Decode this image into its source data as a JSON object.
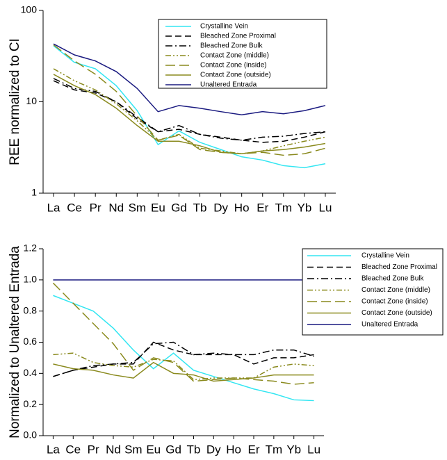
{
  "chart_data": [
    {
      "type": "line",
      "y_label": "REE normalized to CI",
      "yscale": "log",
      "ylim": [
        1,
        100
      ],
      "yticks": [
        1,
        10,
        100
      ],
      "legend": "upper right",
      "categories": [
        "La",
        "Ce",
        "Pr",
        "Nd",
        "Sm",
        "Eu",
        "Gd",
        "Tb",
        "Dy",
        "Ho",
        "Er",
        "Tm",
        "Yb",
        "Lu"
      ],
      "series": [
        {
          "name": "Crystalline Vein",
          "color": "#33e6f2",
          "dash": "solid",
          "values": [
            41,
            27,
            23,
            15,
            8,
            3.4,
            4.8,
            3.6,
            3.0,
            2.5,
            2.3,
            2.0,
            1.9,
            2.1
          ]
        },
        {
          "name": "Bleached Zone Proximal",
          "color": "#000000",
          "dash": "dash",
          "values": [
            17,
            13.5,
            12.5,
            10,
            6.5,
            4.7,
            5.0,
            4.4,
            4.1,
            3.8,
            3.6,
            3.7,
            4.1,
            4.7
          ]
        },
        {
          "name": "Bleached Zone Bulk",
          "color": "#000000",
          "dash": "dashdot",
          "values": [
            18,
            14,
            13,
            10,
            6.8,
            4.7,
            5.5,
            4.4,
            4.0,
            3.8,
            4.1,
            4.2,
            4.5,
            4.7
          ]
        },
        {
          "name": "Contact Zone (middle)",
          "color": "#8a8a1e",
          "dash": "dashdotdot",
          "values": [
            23,
            17,
            13.5,
            9.5,
            6.2,
            3.8,
            4.4,
            3.1,
            2.9,
            2.7,
            2.9,
            3.3,
            3.7,
            4.1
          ]
        },
        {
          "name": "Contact Zone (inside)",
          "color": "#8a8a1e",
          "dash": "longdash",
          "values": [
            42,
            28,
            20,
            13,
            7,
            3.8,
            4.3,
            3.0,
            2.8,
            2.7,
            2.8,
            2.6,
            2.7,
            3.1
          ]
        },
        {
          "name": "Contact Zone (outside)",
          "color": "#8a8a1e",
          "dash": "solid",
          "values": [
            20,
            15,
            12,
            8.5,
            5.5,
            3.7,
            3.7,
            3.3,
            2.8,
            2.7,
            2.9,
            3.0,
            3.2,
            3.5
          ]
        },
        {
          "name": "Unaltered Entrada",
          "color": "#1a1a80",
          "dash": "solid",
          "values": [
            43,
            32.6,
            28,
            21.4,
            14,
            7.8,
            9.1,
            8.5,
            7.8,
            7.2,
            7.8,
            7.4,
            8.0,
            9.1
          ]
        }
      ]
    },
    {
      "type": "line",
      "y_label": "Normalized to Unaltered Entrada",
      "yscale": "linear",
      "ylim": [
        0,
        1.2
      ],
      "yticks": [
        {
          "value": 0,
          "label": "0.0"
        },
        0.2,
        0.4,
        0.6,
        0.8,
        {
          "value": 1,
          "label": "1.0"
        },
        1.2
      ],
      "legend": "upper right",
      "categories": [
        "La",
        "Ce",
        "Pr",
        "Nd",
        "Sm",
        "Eu",
        "Gd",
        "Tb",
        "Dy",
        "Ho",
        "Er",
        "Tm",
        "Yb",
        "Lu"
      ],
      "series": [
        {
          "name": "Crystalline Vein",
          "color": "#33e6f2",
          "dash": "solid",
          "values": [
            0.9,
            0.85,
            0.8,
            0.69,
            0.55,
            0.43,
            0.53,
            0.42,
            0.38,
            0.34,
            0.3,
            0.27,
            0.23,
            0.225
          ]
        },
        {
          "name": "Bleached Zone Proximal",
          "color": "#000000",
          "dash": "dash",
          "values": [
            0.38,
            0.42,
            0.44,
            0.46,
            0.46,
            0.6,
            0.55,
            0.52,
            0.52,
            0.52,
            0.46,
            0.5,
            0.5,
            0.52
          ]
        },
        {
          "name": "Bleached Zone Bulk",
          "color": "#000000",
          "dash": "dashdot",
          "values": [
            0.38,
            0.42,
            0.45,
            0.46,
            0.47,
            0.59,
            0.6,
            0.52,
            0.53,
            0.52,
            0.52,
            0.55,
            0.55,
            0.51
          ]
        },
        {
          "name": "Contact Zone (middle)",
          "color": "#8a8a1e",
          "dash": "dashdotdot",
          "values": [
            0.52,
            0.53,
            0.47,
            0.45,
            0.44,
            0.49,
            0.48,
            0.36,
            0.37,
            0.37,
            0.37,
            0.44,
            0.46,
            0.45
          ]
        },
        {
          "name": "Contact Zone (inside)",
          "color": "#8a8a1e",
          "dash": "longdash",
          "values": [
            0.98,
            0.85,
            0.72,
            0.59,
            0.42,
            0.5,
            0.47,
            0.35,
            0.36,
            0.37,
            0.36,
            0.35,
            0.33,
            0.34
          ]
        },
        {
          "name": "Contact Zone (outside)",
          "color": "#8a8a1e",
          "dash": "solid",
          "values": [
            0.46,
            0.43,
            0.42,
            0.39,
            0.37,
            0.47,
            0.4,
            0.39,
            0.35,
            0.36,
            0.37,
            0.39,
            0.39,
            0.39
          ]
        },
        {
          "name": "Unaltered Entrada",
          "color": "#1a1a80",
          "dash": "solid",
          "values": [
            1,
            1,
            1,
            1,
            1,
            1,
            1,
            1,
            1,
            1,
            1,
            1,
            1,
            1
          ]
        }
      ]
    }
  ]
}
